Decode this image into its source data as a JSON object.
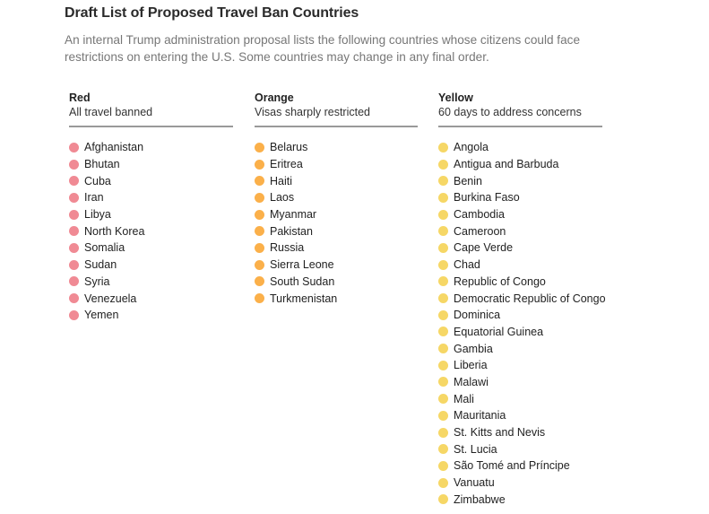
{
  "header": {
    "title": "Draft List of Proposed Travel Ban Countries",
    "subtitle": "An internal Trump administration proposal lists the following countries whose citizens could face restrictions on entering the U.S. Some countries may change in any final order."
  },
  "columns": [
    {
      "name": "Red",
      "description": "All travel banned",
      "color": "#f08a94",
      "countries": [
        "Afghanistan",
        "Bhutan",
        "Cuba",
        "Iran",
        "Libya",
        "North Korea",
        "Somalia",
        "Sudan",
        "Syria",
        "Venezuela",
        "Yemen"
      ]
    },
    {
      "name": "Orange",
      "description": "Visas sharply restricted",
      "color": "#fbb04a",
      "countries": [
        "Belarus",
        "Eritrea",
        "Haiti",
        "Laos",
        "Myanmar",
        "Pakistan",
        "Russia",
        "Sierra Leone",
        "South Sudan",
        "Turkmenistan"
      ]
    },
    {
      "name": "Yellow",
      "description": "60 days to address concerns",
      "color": "#f6d766",
      "countries": [
        "Angola",
        "Antigua and Barbuda",
        "Benin",
        "Burkina Faso",
        "Cambodia",
        "Cameroon",
        "Cape Verde",
        "Chad",
        "Republic of Congo",
        "Democratic Republic of Congo",
        "Dominica",
        "Equatorial Guinea",
        "Gambia",
        "Liberia",
        "Malawi",
        "Mali",
        "Mauritania",
        "St. Kitts and Nevis",
        "St. Lucia",
        "São Tomé and Príncipe",
        "Vanuatu",
        "Zimbabwe"
      ]
    }
  ]
}
